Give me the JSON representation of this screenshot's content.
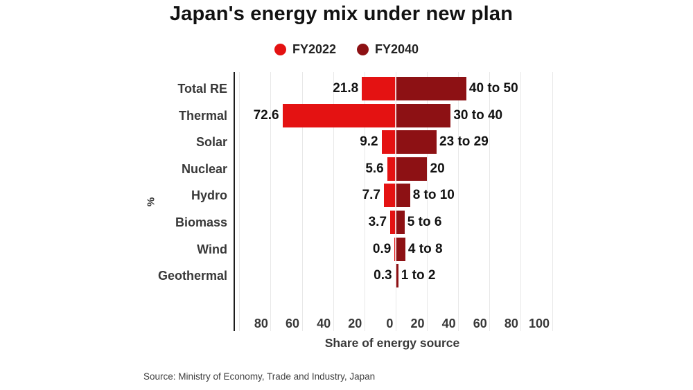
{
  "title": "Japan's energy mix under new plan",
  "source": "Source: Ministry of Economy, Trade and Industry, Japan",
  "chart_data": {
    "type": "bar",
    "variant": "diverging-horizontal",
    "title": "Japan's energy mix under new plan",
    "xlabel": "Share of energy source",
    "ylabel": "%",
    "categories": [
      "Total RE",
      "Thermal",
      "Solar",
      "Nuclear",
      "Hydro",
      "Biomass",
      "Wind",
      "Geothermal"
    ],
    "series": [
      {
        "name": "FY2022",
        "side": "left",
        "color": "#e41212",
        "values": [
          21.8,
          72.6,
          9.2,
          5.6,
          7.7,
          3.7,
          0.9,
          0.3
        ],
        "labels": [
          "21.8",
          "72.6",
          "9.2",
          "5.6",
          "7.7",
          "3.7",
          "0.9",
          "0.3"
        ]
      },
      {
        "name": "FY2040",
        "side": "right",
        "color": "#8d1114",
        "values": [
          45,
          35,
          26,
          20,
          9,
          5.5,
          6,
          1.5
        ],
        "labels": [
          "40 to 50",
          "30 to 40",
          "23 to 29",
          "20",
          "8 to 10",
          "5 to 6",
          "4 to 8",
          "1 to 2"
        ]
      }
    ],
    "x_ticks": [
      -80,
      -60,
      -40,
      -20,
      0,
      20,
      40,
      60,
      80,
      100
    ],
    "x_domain": [
      -103,
      100
    ],
    "gridline_step": 20,
    "grid": true,
    "legend_position": "top",
    "grid_color": "#e8e8e8",
    "zero_separator_color": "#ffffff"
  }
}
